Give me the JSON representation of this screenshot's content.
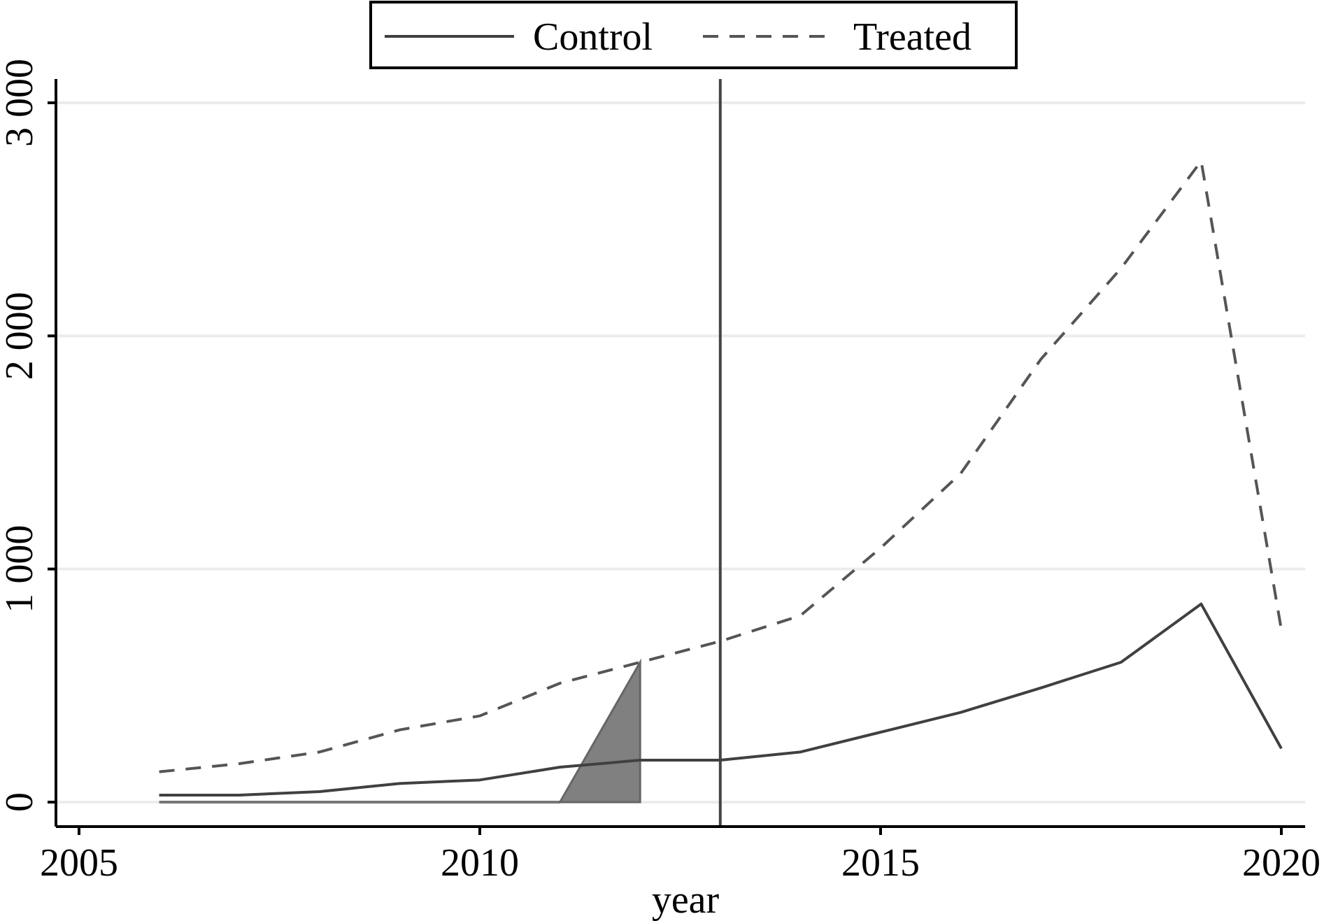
{
  "chart_data": {
    "type": "line",
    "title": "",
    "xlabel": "year",
    "ylabel": "",
    "xlim": [
      2005,
      2020
    ],
    "ylim": [
      0,
      3000
    ],
    "x_ticks": [
      2005,
      2010,
      2015,
      2020
    ],
    "x_tick_labels": [
      "2005",
      "2010",
      "2015",
      "2020"
    ],
    "y_ticks": [
      0,
      1000,
      2000,
      3000
    ],
    "y_tick_labels": [
      "0",
      "1 000",
      "2 000",
      "3 000"
    ],
    "grid": "horizontal",
    "legend": {
      "placement": "top",
      "entries": [
        "Control",
        "Treated"
      ]
    },
    "x": [
      2006,
      2007,
      2008,
      2009,
      2010,
      2011,
      2012,
      2013,
      2014,
      2015,
      2016,
      2017,
      2018,
      2019,
      2020
    ],
    "series": [
      {
        "name": "Control",
        "style": "solid",
        "color": "#404040",
        "values": [
          30,
          30,
          45,
          80,
          95,
          150,
          180,
          180,
          215,
          300,
          385,
          490,
          600,
          850,
          230
        ]
      },
      {
        "name": "Treated",
        "style": "dashed",
        "color": "#555555",
        "values": [
          130,
          165,
          215,
          310,
          370,
          510,
          600,
          690,
          800,
          1090,
          1410,
          1900,
          2290,
          2750,
          740
        ]
      }
    ],
    "annotations": {
      "reference_line_x": 2013,
      "shaded_region": {
        "description_points": [
          [
            2006,
            0
          ],
          [
            2011,
            0
          ],
          [
            2012,
            600
          ],
          [
            2012,
            0
          ]
        ],
        "color": "#808080"
      }
    }
  }
}
